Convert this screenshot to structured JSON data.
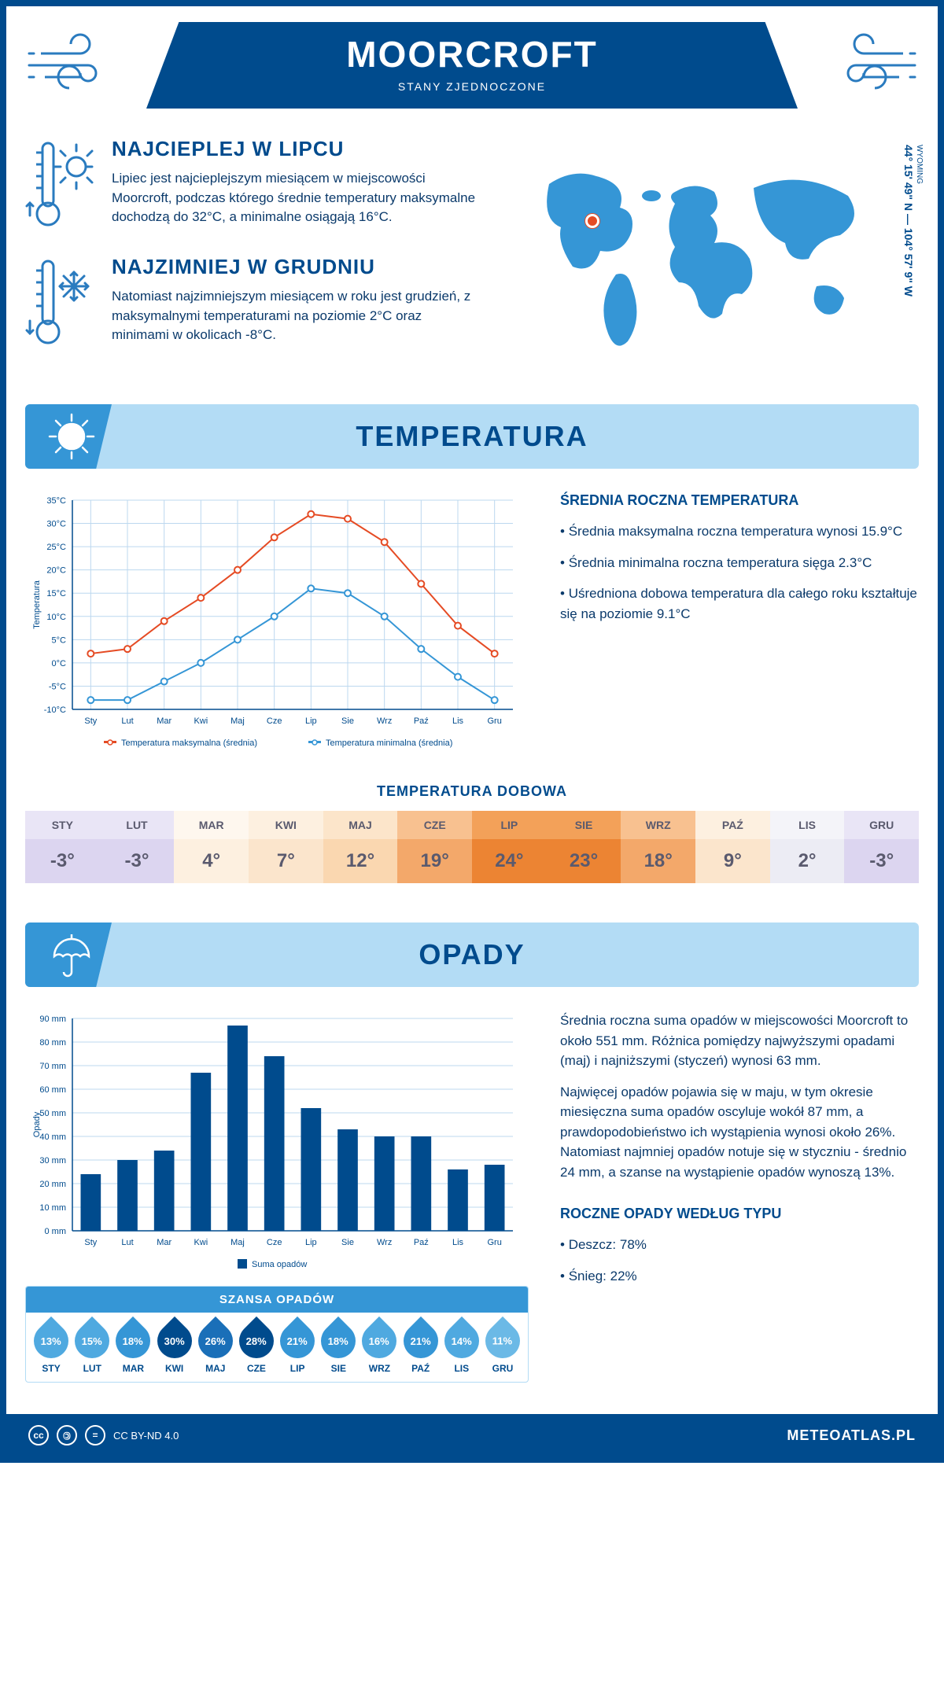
{
  "header": {
    "title": "MOORCROFT",
    "subtitle": "STANY ZJEDNOCZONE"
  },
  "location": {
    "region": "WYOMING",
    "coords": "44° 15' 49\" N — 104° 57' 9\" W"
  },
  "facts": {
    "hot": {
      "title": "NAJCIEPLEJ W LIPCU",
      "text": "Lipiec jest najcieplejszym miesiącem w miejscowości Moorcroft, podczas którego średnie temperatury maksymalne dochodzą do 32°C, a minimalne osiągają 16°C."
    },
    "cold": {
      "title": "NAJZIMNIEJ W GRUDNIU",
      "text": "Natomiast najzimniejszym miesiącem w roku jest grudzień, z maksymalnymi temperaturami na poziomie 2°C oraz minimami w okolicach -8°C."
    }
  },
  "months_short": [
    "Sty",
    "Lut",
    "Mar",
    "Kwi",
    "Maj",
    "Cze",
    "Lip",
    "Sie",
    "Wrz",
    "Paź",
    "Lis",
    "Gru"
  ],
  "months_upper": [
    "STY",
    "LUT",
    "MAR",
    "KWI",
    "MAJ",
    "CZE",
    "LIP",
    "SIE",
    "WRZ",
    "PAŹ",
    "LIS",
    "GRU"
  ],
  "temperature": {
    "section_title": "TEMPERATURA",
    "chart": {
      "type": "line",
      "ylabel": "Temperatura",
      "ylim": [
        -10,
        35
      ],
      "ytick_step": 5,
      "ytick_suffix": "°C",
      "max_series": {
        "label": "Temperatura maksymalna (średnia)",
        "color": "#e54b24",
        "values": [
          2,
          3,
          9,
          14,
          20,
          27,
          32,
          31,
          26,
          17,
          8,
          2
        ]
      },
      "min_series": {
        "label": "Temperatura minimalna (średnia)",
        "color": "#3596d6",
        "values": [
          -8,
          -8,
          -4,
          0,
          5,
          10,
          16,
          15,
          10,
          3,
          -3,
          -8
        ]
      },
      "grid_color": "#bcd8ef",
      "axis_color": "#004b8d",
      "font_size": 11
    },
    "annual": {
      "title": "ŚREDNIA ROCZNA TEMPERATURA",
      "bullets": [
        "Średnia maksymalna roczna temperatura wynosi 15.9°C",
        "Średnia minimalna roczna temperatura sięga 2.3°C",
        "Uśredniona dobowa temperatura dla całego roku kształtuje się na poziomie 9.1°C"
      ]
    },
    "daily": {
      "title": "TEMPERATURA DOBOWA",
      "values": [
        -3,
        -3,
        4,
        7,
        12,
        19,
        24,
        23,
        18,
        9,
        2,
        -3
      ],
      "bg_colors": [
        "#dcd5f0",
        "#dcd5f0",
        "#fdf0e0",
        "#fbe5cc",
        "#fad7b0",
        "#f3a86a",
        "#ec8433",
        "#ec8433",
        "#f3a86a",
        "#fbe5cc",
        "#ececf4",
        "#dcd5f0"
      ],
      "header_bg": [
        "#e9e5f6",
        "#e9e5f6",
        "#fef7ee",
        "#fdf0e0",
        "#fce5ca",
        "#f8c190",
        "#f3a159",
        "#f3a159",
        "#f8c190",
        "#fdf0e0",
        "#f4f4f9",
        "#e9e5f6"
      ],
      "text_color": "#5a5a6e"
    }
  },
  "precipitation": {
    "section_title": "OPADY",
    "chart": {
      "type": "bar",
      "ylabel": "Opady",
      "ylim": [
        0,
        90
      ],
      "ytick_step": 10,
      "ytick_suffix": " mm",
      "values": [
        24,
        30,
        34,
        67,
        87,
        74,
        52,
        43,
        40,
        40,
        26,
        28
      ],
      "bar_color": "#004b8d",
      "grid_color": "#bcd8ef",
      "axis_color": "#004b8d",
      "legend": "Suma opadów",
      "font_size": 11
    },
    "text": {
      "p1": "Średnia roczna suma opadów w miejscowości Moorcroft to około 551 mm. Różnica pomiędzy najwyższymi opadami (maj) i najniższymi (styczeń) wynosi 63 mm.",
      "p2": "Najwięcej opadów pojawia się w maju, w tym okresie miesięczna suma opadów oscyluje wokół 87 mm, a prawdopodobieństwo ich wystąpienia wynosi około 26%. Natomiast najmniej opadów notuje się w styczniu - średnio 24 mm, a szanse na wystąpienie opadów wynoszą 13%."
    },
    "chance": {
      "title": "SZANSA OPADÓW",
      "values": [
        13,
        15,
        18,
        30,
        26,
        28,
        21,
        18,
        16,
        21,
        14,
        11
      ],
      "colors": [
        "#4fa9e0",
        "#4fa9e0",
        "#3596d6",
        "#004b8d",
        "#1a6fb8",
        "#004b8d",
        "#3596d6",
        "#3596d6",
        "#4fa9e0",
        "#3596d6",
        "#4fa9e0",
        "#6bb9e6"
      ]
    },
    "by_type": {
      "title": "ROCZNE OPADY WEDŁUG TYPU",
      "items": [
        "Deszcz: 78%",
        "Śnieg: 22%"
      ]
    }
  },
  "footer": {
    "license": "CC BY-ND 4.0",
    "site": "METEOATLAS.PL"
  },
  "palette": {
    "primary": "#004b8d",
    "accent": "#3596d6",
    "light": "#b3dcf5",
    "orange": "#e54b24"
  }
}
